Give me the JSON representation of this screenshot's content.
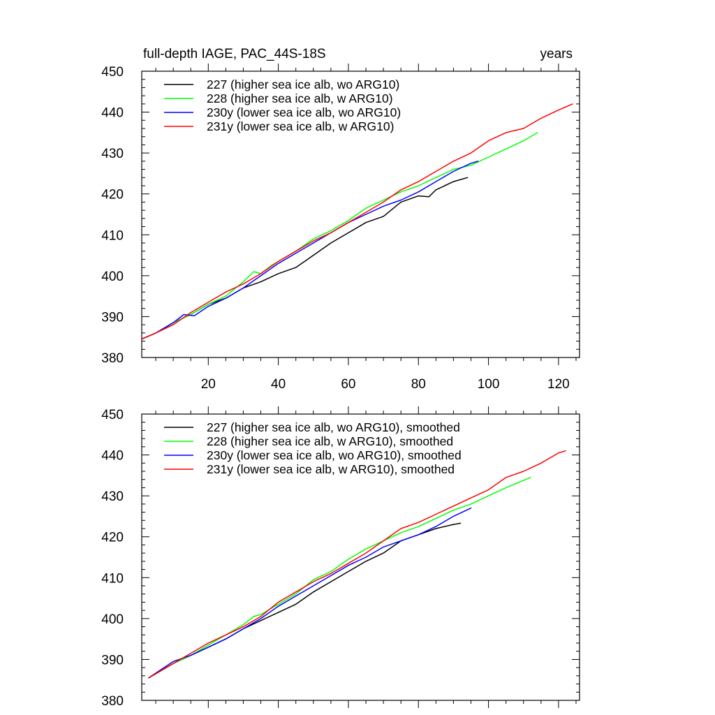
{
  "chart_data": [
    {
      "type": "line",
      "title_left": "full-depth IAGE, PAC_44S-18S",
      "title_right": "years",
      "xlim": [
        1,
        126
      ],
      "ylim": [
        380,
        450
      ],
      "x_ticks": [
        20,
        40,
        60,
        80,
        100,
        120
      ],
      "x_tick_labels": [
        "20",
        "40",
        "60",
        "80",
        "100",
        "120"
      ],
      "y_ticks": [
        380,
        390,
        400,
        410,
        420,
        430,
        440,
        450
      ],
      "y_tick_labels": [
        "380",
        "390",
        "400",
        "410",
        "420",
        "430",
        "440",
        "450"
      ],
      "legend_position": "top-left",
      "series": [
        {
          "name": "227 (higher sea ice alb, wo ARG10)",
          "color": "#000000",
          "x": [
            1,
            5,
            10,
            15,
            20,
            25,
            30,
            35,
            40,
            45,
            50,
            55,
            60,
            65,
            70,
            75,
            80,
            83,
            85,
            90,
            94
          ],
          "y": [
            384.5,
            386,
            388.5,
            390.5,
            393,
            394.5,
            397,
            398.5,
            400.5,
            402,
            405,
            408,
            410.5,
            413,
            414.5,
            418,
            419.5,
            419.3,
            421,
            423,
            424
          ]
        },
        {
          "name": "228 (higher sea ice alb, w ARG10)",
          "color": "#00ff00",
          "x": [
            1,
            5,
            10,
            15,
            20,
            25,
            30,
            33,
            35,
            38,
            40,
            45,
            50,
            55,
            60,
            65,
            70,
            75,
            80,
            85,
            90,
            95,
            100,
            105,
            110,
            114
          ],
          "y": [
            384.5,
            386,
            388.5,
            390.5,
            393,
            395,
            398.5,
            401,
            400.5,
            402.5,
            403.5,
            406,
            409,
            411,
            413.5,
            416.5,
            418.5,
            420.5,
            422,
            424,
            426,
            427,
            429,
            431,
            433,
            435
          ]
        },
        {
          "name": "230y (lower sea ice alb, wo ARG10)",
          "color": "#0000ff",
          "x": [
            1,
            5,
            10,
            13,
            16,
            20,
            25,
            30,
            35,
            40,
            45,
            50,
            55,
            60,
            65,
            70,
            75,
            80,
            85,
            90,
            95,
            97
          ],
          "y": [
            384.5,
            386,
            388.5,
            390.5,
            390.2,
            392.5,
            394.5,
            397,
            400,
            403,
            405.5,
            408,
            410.5,
            413,
            415,
            417,
            418.5,
            420.5,
            423,
            425.5,
            427.5,
            428
          ]
        },
        {
          "name": "231y (lower sea ice alb, w ARG10)",
          "color": "#ff0000",
          "x": [
            1,
            5,
            10,
            15,
            20,
            25,
            30,
            35,
            40,
            45,
            50,
            55,
            60,
            65,
            70,
            75,
            80,
            85,
            90,
            95,
            100,
            105,
            110,
            115,
            120,
            124
          ],
          "y": [
            384.5,
            386,
            388,
            391,
            393.5,
            396,
            398,
            400.5,
            403.5,
            406,
            408.5,
            410.5,
            413,
            415.5,
            418,
            421,
            423,
            425.5,
            428,
            430,
            433,
            435,
            436,
            438.5,
            440.5,
            442
          ]
        }
      ]
    },
    {
      "type": "line",
      "xlim": [
        1,
        126
      ],
      "ylim": [
        380,
        450
      ],
      "y_ticks": [
        380,
        390,
        400,
        410,
        420,
        430,
        440,
        450
      ],
      "y_tick_labels": [
        "380",
        "390",
        "400",
        "410",
        "420",
        "430",
        "440",
        "450"
      ],
      "legend_position": "top-left",
      "series": [
        {
          "name": "227 (higher sea ice alb, wo ARG10), smoothed",
          "color": "#000000",
          "x": [
            3,
            10,
            15,
            20,
            25,
            30,
            35,
            40,
            45,
            50,
            55,
            60,
            65,
            70,
            75,
            80,
            85,
            90,
            92
          ],
          "y": [
            385.5,
            389,
            391,
            393,
            395,
            397.5,
            399.5,
            401.5,
            403.5,
            406.5,
            409,
            411.5,
            414,
            416,
            419,
            420.5,
            422,
            423,
            423.3
          ]
        },
        {
          "name": "228 (higher sea ice alb, w ARG10), smoothed",
          "color": "#00ff00",
          "x": [
            3,
            10,
            15,
            20,
            25,
            30,
            33,
            35,
            40,
            45,
            50,
            55,
            60,
            65,
            70,
            75,
            80,
            85,
            90,
            95,
            100,
            105,
            112
          ],
          "y": [
            385.5,
            389,
            391,
            393.5,
            396,
            398.5,
            400.5,
            401,
            403.5,
            406,
            409.5,
            411.5,
            414.5,
            417,
            419,
            421,
            422.5,
            424.5,
            426.5,
            428,
            430,
            432,
            434.5
          ]
        },
        {
          "name": "230y (lower sea ice alb, wo ARG10), smoothed",
          "color": "#0000ff",
          "x": [
            3,
            10,
            15,
            20,
            25,
            30,
            35,
            40,
            45,
            50,
            55,
            60,
            65,
            70,
            75,
            80,
            85,
            90,
            95
          ],
          "y": [
            385.5,
            389.5,
            391,
            393,
            395,
            397.5,
            400,
            403,
            405.5,
            408,
            410.5,
            413,
            415,
            417.5,
            419,
            420.5,
            422.5,
            425,
            427
          ]
        },
        {
          "name": "231y (lower sea ice alb, w ARG10), smoothed",
          "color": "#ff0000",
          "x": [
            3,
            10,
            15,
            20,
            25,
            30,
            35,
            40,
            45,
            50,
            55,
            60,
            65,
            70,
            75,
            80,
            85,
            90,
            95,
            100,
            105,
            110,
            115,
            120,
            122
          ],
          "y": [
            385.5,
            389,
            391.5,
            394,
            396,
            398,
            400.5,
            404,
            406.5,
            409,
            411,
            413.5,
            416,
            419,
            422,
            423.5,
            425.5,
            427.5,
            429.5,
            431.5,
            434.5,
            436,
            438,
            440.5,
            441
          ]
        }
      ]
    }
  ]
}
